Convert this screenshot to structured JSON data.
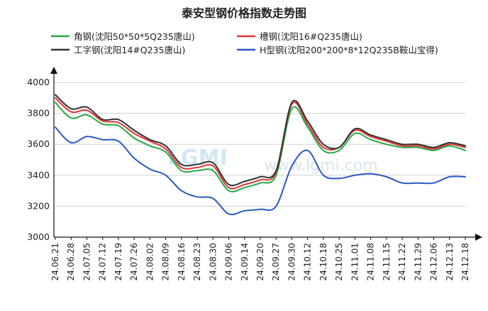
{
  "chart_data": {
    "type": "line",
    "title": "泰安型钢价格指数走势图",
    "xlabel": "",
    "ylabel": "",
    "ylim": [
      3000,
      4000
    ],
    "yticks": [
      "3000",
      "3200",
      "3400",
      "3600",
      "3800",
      "4000"
    ],
    "grid": "horizontal",
    "legend_position": "top",
    "watermark": {
      "logo": "LGMI",
      "url": "www.lgmi.com"
    },
    "x": [
      "24.06.21",
      "24.06.28",
      "24.07.05",
      "24.07.12",
      "24.07.19",
      "24.07.26",
      "24.08.02",
      "24.08.09",
      "24.08.16",
      "24.08.23",
      "24.08.30",
      "24.09.06",
      "24.09.14",
      "24.09.20",
      "24.09.27",
      "24.09.30",
      "24.10.12",
      "24.10.18",
      "24.10.25",
      "24.11.01",
      "24.11.08",
      "24.11.15",
      "24.11.22",
      "24.11.29",
      "24.12.06",
      "24.12.13",
      "24.12.18"
    ],
    "series": [
      {
        "name": "角钢(沈阳50*50*5Q235唐山)",
        "color": "#27a845",
        "values": [
          3870,
          3770,
          3790,
          3730,
          3720,
          3640,
          3590,
          3550,
          3430,
          3430,
          3430,
          3300,
          3320,
          3350,
          3400,
          3830,
          3710,
          3560,
          3560,
          3670,
          3630,
          3600,
          3580,
          3580,
          3560,
          3590,
          3560
        ]
      },
      {
        "name": "槽钢(沈阳16#Q235唐山)",
        "color": "#e03434",
        "values": [
          3900,
          3810,
          3820,
          3750,
          3740,
          3670,
          3620,
          3570,
          3450,
          3450,
          3460,
          3320,
          3340,
          3370,
          3420,
          3860,
          3730,
          3580,
          3580,
          3690,
          3650,
          3620,
          3590,
          3590,
          3570,
          3600,
          3580
        ]
      },
      {
        "name": "工字钢(沈阳14#Q235唐山)",
        "color": "#333333",
        "values": [
          3920,
          3830,
          3840,
          3760,
          3760,
          3690,
          3630,
          3590,
          3470,
          3470,
          3480,
          3340,
          3360,
          3390,
          3430,
          3870,
          3750,
          3600,
          3580,
          3700,
          3660,
          3630,
          3600,
          3600,
          3580,
          3610,
          3590
        ]
      },
      {
        "name": "H型钢(沈阳200*200*8*12Q235B鞍山宝得)",
        "color": "#2a58c4",
        "values": [
          3710,
          3610,
          3650,
          3630,
          3620,
          3510,
          3440,
          3400,
          3300,
          3260,
          3250,
          3150,
          3170,
          3180,
          3200,
          3460,
          3560,
          3400,
          3380,
          3400,
          3410,
          3390,
          3350,
          3350,
          3350,
          3390,
          3390
        ]
      }
    ]
  }
}
